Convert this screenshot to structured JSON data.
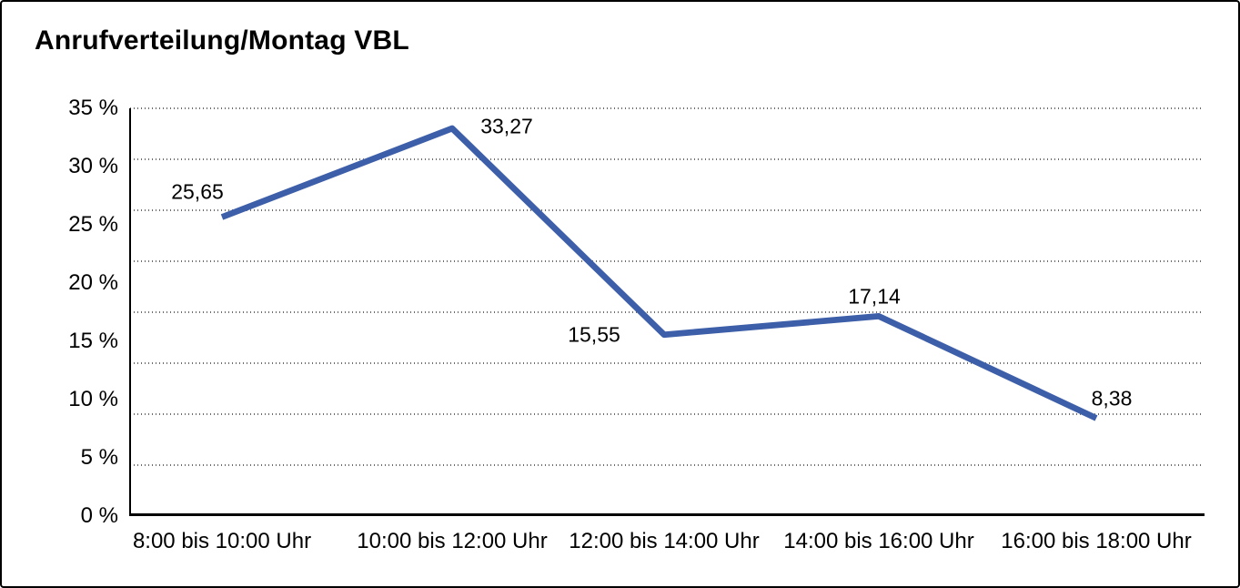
{
  "window": {
    "background": "#ffffff",
    "border_color": "#000000"
  },
  "chart_data": {
    "type": "line",
    "title": "Anrufverteilung/Montag VBL",
    "categories": [
      "8:00 bis 10:00 Uhr",
      "10:00 bis 12:00 Uhr",
      "12:00 bis 14:00 Uhr",
      "14:00 bis 16:00 Uhr",
      "16:00 bis 18:00 Uhr"
    ],
    "series": [
      {
        "values": [
          25.65,
          33.27,
          15.55,
          17.14,
          8.38
        ],
        "color": "#3D5EA8"
      }
    ],
    "data_labels": [
      "25,65",
      "33,27",
      "15,55",
      "17,14",
      "8,38"
    ],
    "y_tick_labels": [
      "35 %",
      "30 %",
      "25 %",
      "20 %",
      "15 %",
      "10 %",
      "5 %",
      "0 %"
    ],
    "ylim": [
      0,
      35
    ],
    "y_tick_step": 5,
    "xlabel": "",
    "ylabel": "",
    "legend": "none",
    "grid": {
      "horizontal_divisions": 8,
      "style": "dotted",
      "color": "#6b6b6b"
    }
  }
}
